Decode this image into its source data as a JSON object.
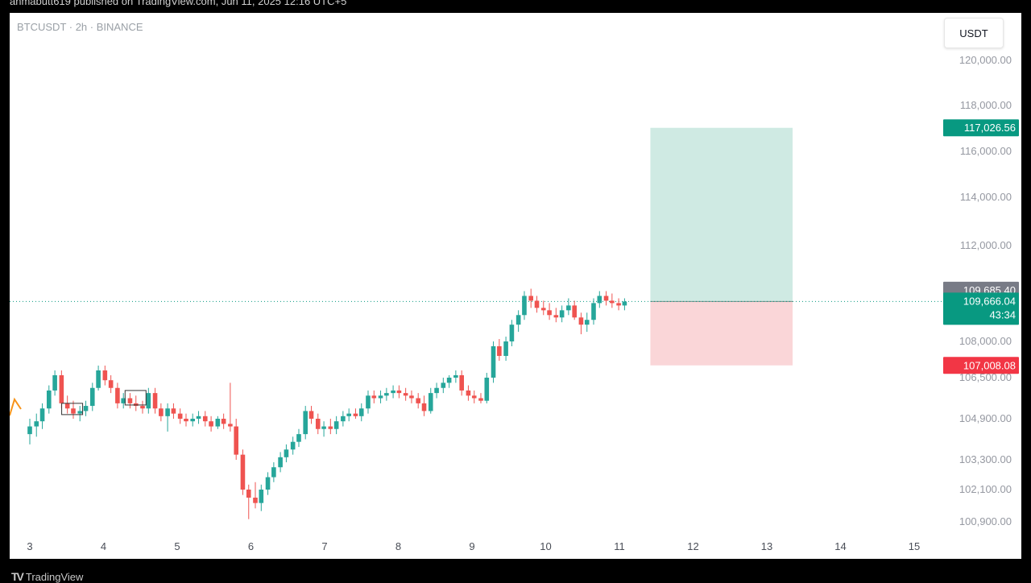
{
  "caption": "anmabutt619 published on TradingView.com, Jun 11, 2025 12:16 UTC+5",
  "symbol_label": "BTCUSDT · 2h · BINANCE",
  "currency_button": "USDT",
  "footer_logo": "TradingView",
  "footer_logo_icon": "TV",
  "colors": {
    "up": "#26a69a",
    "down": "#ef5350",
    "profit_zone": "#cfeae3",
    "loss_zone": "#fad6d8",
    "target_badge": "#089981",
    "stop_badge": "#f23645",
    "last_price_badge": "#089981",
    "prev_price_badge": "#787b86",
    "grid_text": "#9598a1"
  },
  "chart_data": {
    "type": "candlestick",
    "title": "BTCUSDT · 2h · BINANCE",
    "price_axis_ticks": [
      "120,000.00",
      "118,000.00",
      "116,000.00",
      "114,000.00",
      "112,000.00",
      "108,000.00",
      "106,500.00",
      "104,900.00",
      "103,300.00",
      "102,100.00",
      "100,900.00"
    ],
    "price_axis_values": [
      120000,
      118000,
      116000,
      114000,
      112000,
      108000,
      106500,
      104900,
      103300,
      102100,
      100900
    ],
    "time_axis_ticks": [
      "3",
      "4",
      "5",
      "6",
      "7",
      "8",
      "9",
      "10",
      "11",
      "12",
      "13",
      "14",
      "15"
    ],
    "price_labels": {
      "target": "117,026.56",
      "prev_close": "109,685.40",
      "last": "109,666.04",
      "countdown": "43:34",
      "stop": "107,008.08"
    },
    "position": {
      "type": "long",
      "entry": 109666.04,
      "target": 117026.56,
      "stop": 107008.08,
      "start_day": 11.42,
      "end_day": 13.35
    },
    "candles": [
      {
        "t": 3.0,
        "o": 104300,
        "h": 104900,
        "l": 103900,
        "c": 104600
      },
      {
        "t": 3.09,
        "o": 104600,
        "h": 105100,
        "l": 104200,
        "c": 104800
      },
      {
        "t": 3.17,
        "o": 104800,
        "h": 105500,
        "l": 104500,
        "c": 105300
      },
      {
        "t": 3.26,
        "o": 105300,
        "h": 106200,
        "l": 105100,
        "c": 106000
      },
      {
        "t": 3.34,
        "o": 106000,
        "h": 106800,
        "l": 105800,
        "c": 106600
      },
      {
        "t": 3.43,
        "o": 106600,
        "h": 106800,
        "l": 105300,
        "c": 105500
      },
      {
        "t": 3.51,
        "o": 105500,
        "h": 105800,
        "l": 105100,
        "c": 105300
      },
      {
        "t": 3.59,
        "o": 105300,
        "h": 105600,
        "l": 104900,
        "c": 105100
      },
      {
        "t": 3.68,
        "o": 105100,
        "h": 105400,
        "l": 104800,
        "c": 105200
      },
      {
        "t": 3.76,
        "o": 105200,
        "h": 105600,
        "l": 105000,
        "c": 105400
      },
      {
        "t": 3.85,
        "o": 105400,
        "h": 106300,
        "l": 105200,
        "c": 106100
      },
      {
        "t": 3.93,
        "o": 106100,
        "h": 107000,
        "l": 106000,
        "c": 106800
      },
      {
        "t": 4.02,
        "o": 106800,
        "h": 107000,
        "l": 106200,
        "c": 106400
      },
      {
        "t": 4.1,
        "o": 106400,
        "h": 106600,
        "l": 105900,
        "c": 106100
      },
      {
        "t": 4.19,
        "o": 106100,
        "h": 106300,
        "l": 105300,
        "c": 105500
      },
      {
        "t": 4.27,
        "o": 105500,
        "h": 105900,
        "l": 105300,
        "c": 105700
      },
      {
        "t": 4.36,
        "o": 105700,
        "h": 105900,
        "l": 105300,
        "c": 105500
      },
      {
        "t": 4.44,
        "o": 105500,
        "h": 105800,
        "l": 105200,
        "c": 105400
      },
      {
        "t": 4.53,
        "o": 105400,
        "h": 105600,
        "l": 105100,
        "c": 105300
      },
      {
        "t": 4.61,
        "o": 105300,
        "h": 106100,
        "l": 105100,
        "c": 105900
      },
      {
        "t": 4.7,
        "o": 105900,
        "h": 106100,
        "l": 105100,
        "c": 105300
      },
      {
        "t": 4.78,
        "o": 105300,
        "h": 105500,
        "l": 104800,
        "c": 105000
      },
      {
        "t": 4.87,
        "o": 105000,
        "h": 105500,
        "l": 104400,
        "c": 105300
      },
      {
        "t": 4.95,
        "o": 105300,
        "h": 105500,
        "l": 104900,
        "c": 105100
      },
      {
        "t": 5.04,
        "o": 105100,
        "h": 105300,
        "l": 104700,
        "c": 104900
      },
      {
        "t": 5.12,
        "o": 104900,
        "h": 105100,
        "l": 104600,
        "c": 104800
      },
      {
        "t": 5.21,
        "o": 104800,
        "h": 105100,
        "l": 104600,
        "c": 104900
      },
      {
        "t": 5.29,
        "o": 104900,
        "h": 105200,
        "l": 104700,
        "c": 105000
      },
      {
        "t": 5.38,
        "o": 105000,
        "h": 105200,
        "l": 104600,
        "c": 104800
      },
      {
        "t": 5.46,
        "o": 104800,
        "h": 105000,
        "l": 104400,
        "c": 104600
      },
      {
        "t": 5.55,
        "o": 104600,
        "h": 105000,
        "l": 104500,
        "c": 104900
      },
      {
        "t": 5.63,
        "o": 104900,
        "h": 105100,
        "l": 104500,
        "c": 104700
      },
      {
        "t": 5.72,
        "o": 104700,
        "h": 106300,
        "l": 104400,
        "c": 104600
      },
      {
        "t": 5.8,
        "o": 104600,
        "h": 104900,
        "l": 103300,
        "c": 103500
      },
      {
        "t": 5.89,
        "o": 103500,
        "h": 103700,
        "l": 101900,
        "c": 102100
      },
      {
        "t": 5.97,
        "o": 102100,
        "h": 102300,
        "l": 101000,
        "c": 101800
      },
      {
        "t": 6.06,
        "o": 101800,
        "h": 102400,
        "l": 101400,
        "c": 101600
      },
      {
        "t": 6.14,
        "o": 101600,
        "h": 102300,
        "l": 101300,
        "c": 102100
      },
      {
        "t": 6.23,
        "o": 102100,
        "h": 102800,
        "l": 101900,
        "c": 102600
      },
      {
        "t": 6.31,
        "o": 102600,
        "h": 103200,
        "l": 102400,
        "c": 103000
      },
      {
        "t": 6.4,
        "o": 103000,
        "h": 103600,
        "l": 102800,
        "c": 103400
      },
      {
        "t": 6.48,
        "o": 103400,
        "h": 103900,
        "l": 103200,
        "c": 103700
      },
      {
        "t": 6.57,
        "o": 103700,
        "h": 104200,
        "l": 103500,
        "c": 104000
      },
      {
        "t": 6.65,
        "o": 104000,
        "h": 104500,
        "l": 103800,
        "c": 104300
      },
      {
        "t": 6.74,
        "o": 104300,
        "h": 105400,
        "l": 104100,
        "c": 105200
      },
      {
        "t": 6.82,
        "o": 105200,
        "h": 105400,
        "l": 104700,
        "c": 104900
      },
      {
        "t": 6.91,
        "o": 104900,
        "h": 105100,
        "l": 104300,
        "c": 104500
      },
      {
        "t": 6.99,
        "o": 104500,
        "h": 104800,
        "l": 104200,
        "c": 104600
      },
      {
        "t": 7.08,
        "o": 104600,
        "h": 104900,
        "l": 104300,
        "c": 104500
      },
      {
        "t": 7.16,
        "o": 104500,
        "h": 105000,
        "l": 104300,
        "c": 104800
      },
      {
        "t": 7.25,
        "o": 104800,
        "h": 105200,
        "l": 104600,
        "c": 105000
      },
      {
        "t": 7.33,
        "o": 105000,
        "h": 105300,
        "l": 104800,
        "c": 105100
      },
      {
        "t": 7.42,
        "o": 105100,
        "h": 105300,
        "l": 104900,
        "c": 105000
      },
      {
        "t": 7.5,
        "o": 105000,
        "h": 105500,
        "l": 104800,
        "c": 105300
      },
      {
        "t": 7.59,
        "o": 105300,
        "h": 106000,
        "l": 105100,
        "c": 105800
      },
      {
        "t": 7.67,
        "o": 105800,
        "h": 106000,
        "l": 105500,
        "c": 105700
      },
      {
        "t": 7.76,
        "o": 105700,
        "h": 106000,
        "l": 105500,
        "c": 105800
      },
      {
        "t": 7.84,
        "o": 105800,
        "h": 106100,
        "l": 105600,
        "c": 105900
      },
      {
        "t": 7.93,
        "o": 105900,
        "h": 106200,
        "l": 105700,
        "c": 106000
      },
      {
        "t": 8.01,
        "o": 106000,
        "h": 106200,
        "l": 105700,
        "c": 105900
      },
      {
        "t": 8.1,
        "o": 105900,
        "h": 106100,
        "l": 105600,
        "c": 105800
      },
      {
        "t": 8.18,
        "o": 105800,
        "h": 106000,
        "l": 105500,
        "c": 105700
      },
      {
        "t": 8.27,
        "o": 105700,
        "h": 105900,
        "l": 105300,
        "c": 105500
      },
      {
        "t": 8.35,
        "o": 105500,
        "h": 105800,
        "l": 105000,
        "c": 105200
      },
      {
        "t": 8.44,
        "o": 105200,
        "h": 106100,
        "l": 105100,
        "c": 105900
      },
      {
        "t": 8.52,
        "o": 105900,
        "h": 106300,
        "l": 105700,
        "c": 106100
      },
      {
        "t": 8.61,
        "o": 106100,
        "h": 106500,
        "l": 105900,
        "c": 106300
      },
      {
        "t": 8.69,
        "o": 106300,
        "h": 106600,
        "l": 106100,
        "c": 106500
      },
      {
        "t": 8.78,
        "o": 106500,
        "h": 106800,
        "l": 106300,
        "c": 106600
      },
      {
        "t": 8.86,
        "o": 106600,
        "h": 106800,
        "l": 105800,
        "c": 106000
      },
      {
        "t": 8.95,
        "o": 106000,
        "h": 106200,
        "l": 105600,
        "c": 105800
      },
      {
        "t": 9.03,
        "o": 105800,
        "h": 106000,
        "l": 105500,
        "c": 105700
      },
      {
        "t": 9.12,
        "o": 105700,
        "h": 105900,
        "l": 105500,
        "c": 105600
      },
      {
        "t": 9.2,
        "o": 105600,
        "h": 106700,
        "l": 105500,
        "c": 106500
      },
      {
        "t": 9.29,
        "o": 106500,
        "h": 108000,
        "l": 106300,
        "c": 107800
      },
      {
        "t": 9.37,
        "o": 107800,
        "h": 108100,
        "l": 107200,
        "c": 107400
      },
      {
        "t": 9.46,
        "o": 107400,
        "h": 108200,
        "l": 107200,
        "c": 108000
      },
      {
        "t": 9.54,
        "o": 108000,
        "h": 108900,
        "l": 107800,
        "c": 108700
      },
      {
        "t": 9.63,
        "o": 108700,
        "h": 109300,
        "l": 108400,
        "c": 109100
      },
      {
        "t": 9.71,
        "o": 109100,
        "h": 110100,
        "l": 108900,
        "c": 109900
      },
      {
        "t": 9.8,
        "o": 109900,
        "h": 110200,
        "l": 109400,
        "c": 109700
      },
      {
        "t": 9.88,
        "o": 109700,
        "h": 109900,
        "l": 109200,
        "c": 109400
      },
      {
        "t": 9.97,
        "o": 109400,
        "h": 109700,
        "l": 109100,
        "c": 109300
      },
      {
        "t": 10.05,
        "o": 109300,
        "h": 109600,
        "l": 108900,
        "c": 109100
      },
      {
        "t": 10.14,
        "o": 109100,
        "h": 109400,
        "l": 108800,
        "c": 109000
      },
      {
        "t": 10.22,
        "o": 109000,
        "h": 109500,
        "l": 108800,
        "c": 109300
      },
      {
        "t": 10.31,
        "o": 109300,
        "h": 109800,
        "l": 109100,
        "c": 109500
      },
      {
        "t": 10.39,
        "o": 109500,
        "h": 109700,
        "l": 108900,
        "c": 109000
      },
      {
        "t": 10.48,
        "o": 109000,
        "h": 109200,
        "l": 108300,
        "c": 108700
      },
      {
        "t": 10.56,
        "o": 108700,
        "h": 109200,
        "l": 108400,
        "c": 108900
      },
      {
        "t": 10.65,
        "o": 108900,
        "h": 109800,
        "l": 108700,
        "c": 109600
      },
      {
        "t": 10.73,
        "o": 109600,
        "h": 110100,
        "l": 109400,
        "c": 109900
      },
      {
        "t": 10.82,
        "o": 109900,
        "h": 110100,
        "l": 109500,
        "c": 109700
      },
      {
        "t": 10.9,
        "o": 109700,
        "h": 110000,
        "l": 109400,
        "c": 109600
      },
      {
        "t": 10.99,
        "o": 109600,
        "h": 109800,
        "l": 109300,
        "c": 109500
      },
      {
        "t": 11.07,
        "o": 109500,
        "h": 109800,
        "l": 109300,
        "c": 109666
      }
    ]
  }
}
